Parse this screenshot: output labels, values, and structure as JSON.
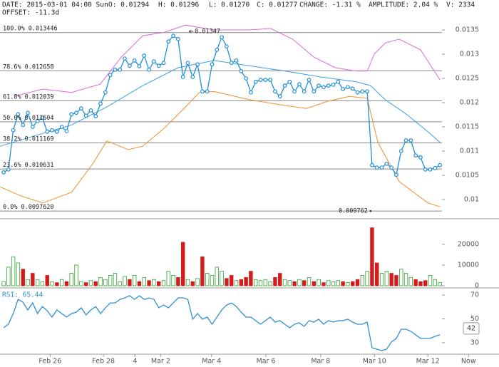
{
  "header": {
    "date": "DATE: 2015-03-01 04:00 Sun",
    "open": "O: 0.01294",
    "high": "H: 0.01296",
    "low": "L: 0.01270",
    "close": "C: 0.01277",
    "change": "CHANGE: -1.31 %",
    "amplitude": "AMPLITUDE: 2.04 %",
    "volume": "V: 2334",
    "offset": "OFFSET: -11.3d"
  },
  "chart_data": [
    {
      "type": "line",
      "x": [
        0,
        1,
        2,
        3,
        4,
        5,
        6,
        7,
        8,
        9,
        10,
        11,
        12,
        13,
        14,
        15,
        16,
        17,
        18,
        19,
        20,
        21,
        22,
        23,
        24,
        25,
        26,
        27,
        28,
        29,
        30,
        31,
        32,
        33,
        34,
        35,
        36,
        37,
        38,
        39,
        40,
        41,
        42,
        43,
        44,
        45,
        46,
        47,
        48,
        49,
        50,
        51,
        52,
        53,
        54,
        55,
        56,
        57,
        58,
        59,
        60,
        61,
        62,
        63,
        64,
        65,
        66,
        67,
        68,
        69,
        70,
        71,
        72,
        73,
        74,
        75,
        76,
        77,
        78,
        79,
        80,
        81,
        82,
        83,
        84,
        85,
        86,
        87,
        88,
        89,
        90
      ],
      "series": [
        {
          "color": "#1f8fd6",
          "values": [
            0.01056,
            0.01062,
            0.01143,
            0.01176,
            0.01154,
            0.01179,
            0.0115,
            0.01162,
            0.01169,
            0.0114,
            0.01143,
            0.0114,
            0.0115,
            0.01141,
            0.01176,
            0.01179,
            0.01188,
            0.01173,
            0.01184,
            0.01172,
            0.01198,
            0.01221,
            0.01257,
            0.01268,
            0.01268,
            0.01291,
            0.01276,
            0.01287,
            0.01275,
            0.01297,
            0.01268,
            0.01285,
            0.01276,
            0.01282,
            0.01326,
            0.01338,
            0.01331,
            0.01253,
            0.01282,
            0.01253,
            0.01279,
            0.01223,
            0.01223,
            0.01279,
            0.01309,
            0.01335,
            0.01316,
            0.01282,
            0.01287,
            0.01265,
            0.0125,
            0.01221,
            0.01243,
            0.01247,
            0.01247,
            0.01247,
            0.01223,
            0.01213,
            0.01235,
            0.01243,
            0.01223,
            0.01238,
            0.01223,
            0.01247,
            0.01223,
            0.01235,
            0.01232,
            0.01235,
            0.01237,
            0.01243,
            0.01228,
            0.01232,
            0.01229,
            0.01221,
            0.01223,
            0.01223,
            0.01071,
            0.01066,
            0.01066,
            0.01074,
            0.01066,
            0.01051,
            0.011,
            0.01122,
            0.01122,
            0.01091,
            0.01087,
            0.01062,
            0.01062,
            0.01065,
            0.01071
          ]
        }
      ],
      "overlays": [
        {
          "color": "#3a9ee0",
          "x": [
            -0.7,
            6.6,
            14,
            21.3,
            28.7,
            36,
            43.4,
            50.7,
            58.1,
            65.4,
            72.8,
            75.7,
            78.7,
            83.1,
            87.5,
            90
          ],
          "values": [
            0.0111,
            0.01132,
            0.01154,
            0.01191,
            0.01235,
            0.01272,
            0.01287,
            0.01276,
            0.01265,
            0.01253,
            0.01243,
            0.01235,
            0.01206,
            0.01176,
            0.0114,
            0.01118
          ]
        },
        {
          "color": "#f0902a",
          "x": [
            -0.7,
            3.7,
            8.1,
            14,
            18.4,
            21.3,
            25.7,
            28.7,
            33.1,
            37.5,
            40.4,
            43.4,
            50.7,
            58.1,
            62.5,
            66.9,
            71.3,
            75,
            77.2,
            81.6,
            87.5,
            90
          ],
          "values": [
            0.01026,
            0.01007,
            0.00993,
            0.01015,
            0.01074,
            0.01121,
            0.01103,
            0.0111,
            0.01147,
            0.01191,
            0.01221,
            0.01223,
            0.01206,
            0.01194,
            0.01188,
            0.01203,
            0.01213,
            0.01209,
            0.01118,
            0.01037,
            0.00993,
            0.00985
          ]
        },
        {
          "color": "#d86ad8",
          "x": [
            2.2,
            8.1,
            14,
            19.9,
            24.3,
            28.7,
            33.1,
            37.5,
            43.4,
            50.7,
            55.1,
            59.6,
            64,
            68.4,
            72.8,
            75,
            76.5,
            78.7,
            81.6,
            86,
            90
          ],
          "values": [
            0.01213,
            0.01228,
            0.01221,
            0.01238,
            0.01294,
            0.01338,
            0.01345,
            0.0136,
            0.0135,
            0.0135,
            0.01353,
            0.01331,
            0.01294,
            0.01272,
            0.01265,
            0.01265,
            0.01301,
            0.01323,
            0.01331,
            0.01309,
            0.01247
          ]
        }
      ],
      "fib_levels": [
        {
          "pct": "100.0%",
          "value": 0.013446
        },
        {
          "pct": "78.6%",
          "value": 0.012658
        },
        {
          "pct": "61.8%",
          "value": 0.012039
        },
        {
          "pct": "50.0%",
          "value": 0.011604
        },
        {
          "pct": "38.2%",
          "value": 0.011169
        },
        {
          "pct": "23.6%",
          "value": 0.010631
        },
        {
          "pct": "0.0%",
          "value": {
            "value": 0.009762,
            "label": "0.0097620"
          }
        }
      ],
      "high": {
        "x": 37.8,
        "value": 0.01347
      },
      "low": {
        "x": 75.7,
        "value": 0.009762
      },
      "ylim": [
        0.009632,
        0.014118
      ],
      "yticks": [
        0.0135,
        0.013,
        0.0125,
        0.012,
        0.0115,
        0.011,
        0.0105,
        0.01
      ]
    },
    {
      "type": "bar",
      "values": [
        2000,
        9000,
        14000,
        11000,
        8000,
        3000,
        6000,
        3000,
        2000,
        5000,
        2000,
        1500,
        3000,
        2000,
        6000,
        10000,
        2000,
        1500,
        2500,
        2000,
        4000,
        3000,
        5000,
        6000,
        2000,
        4500,
        3000,
        5000,
        2000,
        4000,
        2500,
        3000,
        2000,
        2500,
        7000,
        5000,
        4000,
        21000,
        3000,
        2000,
        3500,
        14000,
        6000,
        5000,
        9000,
        7000,
        3500,
        5000,
        2500,
        3000,
        4000,
        7000,
        3000,
        2500,
        3000,
        2000,
        4000,
        6000,
        3000,
        2500,
        2000,
        3000,
        2500,
        4000,
        2000,
        3000,
        1500,
        2500,
        2000,
        2500,
        2000,
        1500,
        2000,
        3000,
        5000,
        7000,
        28000,
        11000,
        6000,
        7000,
        6000,
        5000,
        8000,
        6000,
        4000,
        3000,
        2000,
        2500,
        5000,
        3000,
        1500
      ],
      "up_color": "#2ca02c",
      "down_color": "#d41c1c",
      "ylim": [
        0,
        32000
      ],
      "yticks": [
        0,
        10000,
        20000
      ]
    },
    {
      "type": "line",
      "label": "RSI: 65.44",
      "color": "#2f8fd4",
      "values": [
        42.5,
        45.5,
        54.5,
        66.4,
        64,
        57.5,
        63.4,
        54.5,
        60.4,
        56.9,
        51.5,
        57.5,
        54.5,
        51.5,
        54.5,
        55.7,
        59.3,
        53.3,
        57.5,
        60.4,
        54.5,
        59.3,
        63.4,
        63.4,
        66.4,
        67.6,
        69.4,
        66.4,
        69.4,
        66.4,
        67.6,
        66.4,
        59.3,
        61.6,
        59.3,
        63.4,
        67.6,
        67.6,
        66.4,
        49.7,
        54.5,
        49.7,
        51.5,
        45.5,
        51.5,
        57.5,
        61.6,
        63.4,
        60.4,
        55.7,
        51.5,
        51.5,
        48.5,
        45.5,
        48.5,
        51.5,
        47.3,
        48.5,
        45.5,
        42.5,
        45.5,
        46.7,
        43.7,
        48.5,
        47.3,
        49.7,
        45.5,
        48.5,
        47.3,
        48.5,
        48.5,
        49.7,
        47.3,
        45.5,
        45.5,
        47.3,
        25.8,
        24.6,
        23.4,
        24.6,
        30.6,
        33.6,
        41.3,
        41.3,
        39.6,
        36.6,
        33.6,
        33.6,
        33.6,
        35.4,
        36.6
      ],
      "badge": 42,
      "ylim": [
        21.6,
        75.4
      ],
      "yticks": [
        30,
        50,
        70
      ],
      "xlim": [
        -0.74,
        96.3
      ],
      "xticks": [
        {
          "value": 9.6,
          "label": "Feb 26"
        },
        {
          "value": 20.6,
          "label": "Feb 28"
        },
        {
          "value": 27.1,
          "label": "4"
        },
        {
          "value": 32.4,
          "label": "Mar 2"
        },
        {
          "value": 42.9,
          "label": "Mar 4"
        },
        {
          "value": 54.1,
          "label": "Mar 6"
        },
        {
          "value": 65.4,
          "label": "Mar 8"
        },
        {
          "value": 76.5,
          "label": "Mar 10"
        },
        {
          "value": 87.5,
          "label": "Mar 12"
        },
        {
          "value": 95.9,
          "label": "Now"
        }
      ]
    }
  ]
}
